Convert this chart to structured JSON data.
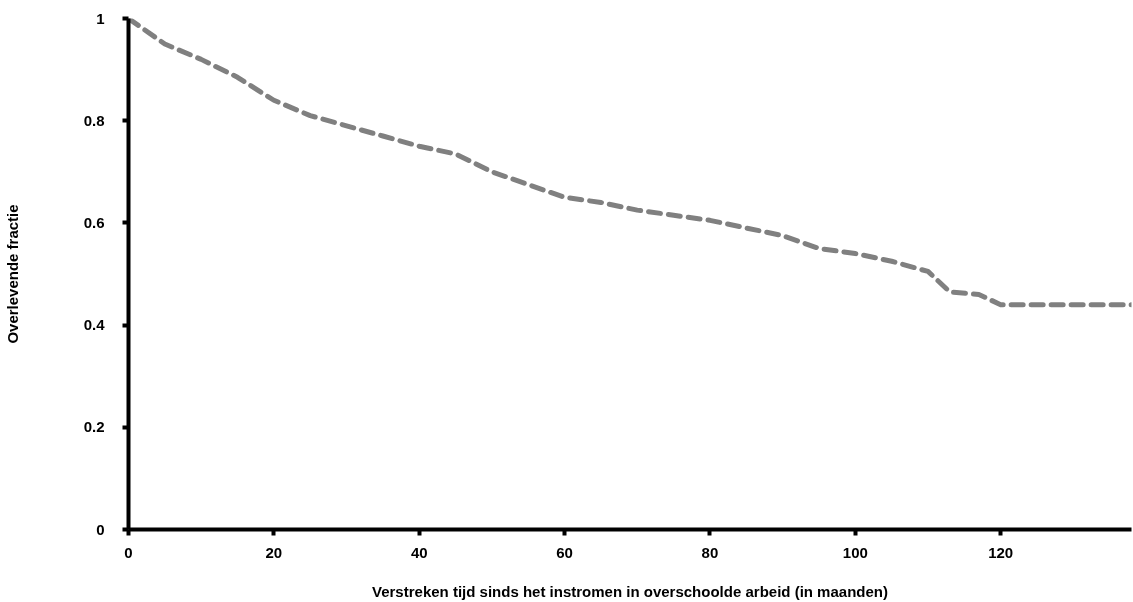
{
  "chart_data": {
    "type": "line",
    "xlabel": "Verstreken tijd sinds het instromen in overschoolde arbeid (in maanden)",
    "ylabel": "Overlevende fractie",
    "x": [
      0,
      5,
      10,
      15,
      20,
      25,
      30,
      35,
      40,
      45,
      50,
      55,
      60,
      65,
      70,
      75,
      80,
      85,
      90,
      95,
      100,
      105,
      110,
      113,
      117,
      120,
      138
    ],
    "series": [
      {
        "color": "#808080",
        "values": [
          1.0,
          0.95,
          0.92,
          0.885,
          0.84,
          0.81,
          0.79,
          0.77,
          0.75,
          0.735,
          0.7,
          0.675,
          0.65,
          0.64,
          0.625,
          0.615,
          0.605,
          0.59,
          0.575,
          0.55,
          0.54,
          0.525,
          0.505,
          0.465,
          0.46,
          0.44,
          0.44
        ]
      }
    ],
    "xlim": [
      0,
      138
    ],
    "xticks": [
      0,
      20,
      40,
      60,
      80,
      100,
      120
    ],
    "ylim": [
      0,
      1
    ],
    "yticks": [
      0,
      0.2,
      0.4,
      0.6,
      0.8,
      1
    ],
    "grid": false,
    "marker": "none",
    "line_style": "dashed"
  }
}
